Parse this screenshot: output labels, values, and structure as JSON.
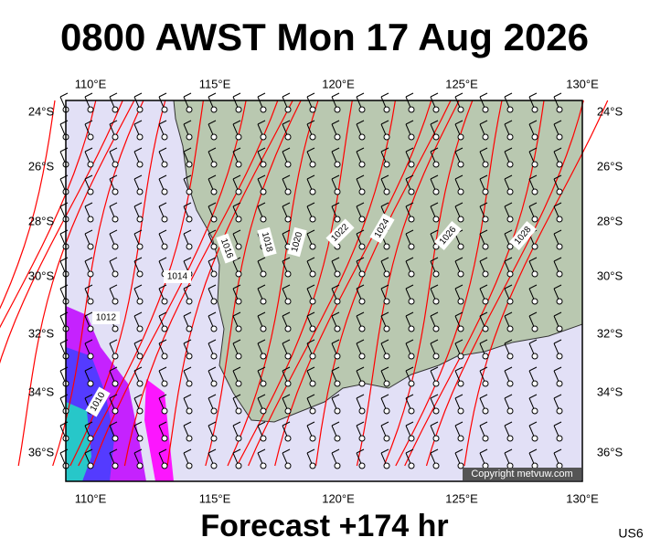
{
  "title": "0800 AWST Mon 17 Aug 2026",
  "lon_labels": [
    "110°E",
    "115°E",
    "120°E",
    "125°E",
    "130°E"
  ],
  "lat_labels": [
    "24°S",
    "26°S",
    "28°S",
    "30°S",
    "32°S",
    "34°S",
    "36°S"
  ],
  "isobar_labels": [
    "1010",
    "1012",
    "1014",
    "1016",
    "1018",
    "1020",
    "1022",
    "1024",
    "1026",
    "1028"
  ],
  "copyright": "Copyright metvuw.com",
  "footer": "Forecast +174 hr",
  "code": "US6"
}
